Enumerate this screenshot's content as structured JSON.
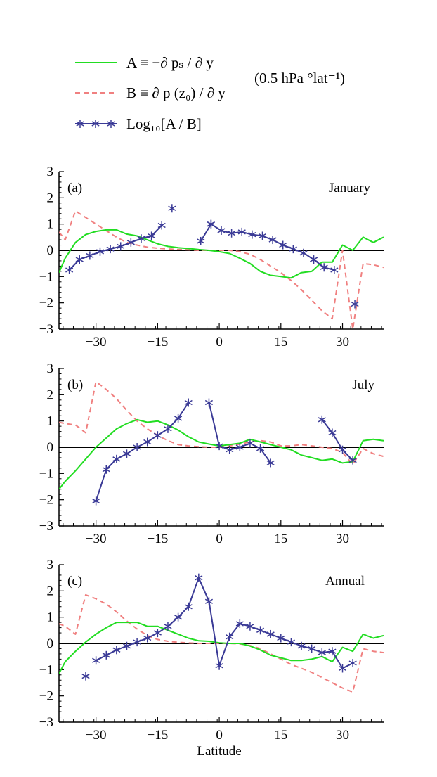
{
  "chart_data": {
    "type": "line",
    "units": "(0.5 hPa °lat⁻¹)",
    "legend": [
      {
        "key": "A",
        "text": "A ≡ −∂ pₛ / ∂ y",
        "color": "#22dd22",
        "style": "solid"
      },
      {
        "key": "B",
        "text": "B ≡ ∂ p (z₀) / ∂ y",
        "color": "#f08080",
        "style": "dashed"
      },
      {
        "key": "L",
        "text": "Log₁₀[A / B]",
        "color": "#3a3a96",
        "style": "line-with-asterisks"
      }
    ],
    "xlabel": "Latitude",
    "xlim": [
      -39,
      40
    ],
    "ylim": [
      -3,
      3
    ],
    "xticks": [
      -30,
      -15,
      0,
      15,
      30
    ],
    "xtick_labels": [
      "−30",
      "−15",
      "0",
      "15",
      "30"
    ],
    "yticks": [
      -3,
      -2,
      -1,
      0,
      1,
      2,
      3
    ],
    "ytick_labels": [
      "−3",
      "−2",
      "−1",
      "0",
      "1",
      "2",
      "3"
    ],
    "panels": [
      {
        "label": "(a)",
        "title": "January",
        "series": {
          "A": {
            "x": [
              -39,
              -37.5,
              -35,
              -32.5,
              -30,
              -27.5,
              -25,
              -22.5,
              -20,
              -17.5,
              -15,
              -12.5,
              -10,
              -7.5,
              -5,
              -2.5,
              0,
              2.5,
              5,
              7.5,
              10,
              12.5,
              15,
              17.5,
              20,
              22.5,
              25,
              27.5,
              30,
              32.5,
              35,
              37.5,
              40
            ],
            "y": [
              -0.85,
              -0.3,
              0.3,
              0.6,
              0.72,
              0.78,
              0.78,
              0.62,
              0.55,
              0.4,
              0.25,
              0.15,
              0.1,
              0.07,
              0.03,
              0.0,
              -0.05,
              -0.12,
              -0.3,
              -0.5,
              -0.8,
              -0.95,
              -1.0,
              -1.05,
              -0.85,
              -0.8,
              -0.45,
              -0.45,
              0.2,
              0.0,
              0.5,
              0.3,
              0.5
            ]
          },
          "B": {
            "x": [
              -39,
              -37.5,
              -35,
              -32.5,
              -30,
              -27.5,
              -25,
              -22.5,
              -20,
              -17.5,
              -15,
              -12.5,
              -10,
              -7.5,
              -5,
              -2.5,
              0,
              2.5,
              5,
              7.5,
              10,
              12.5,
              15,
              17.5,
              20,
              22.5,
              25,
              27.5,
              30,
              32.5,
              35,
              37.5,
              40
            ],
            "y": [
              0.7,
              0.4,
              1.5,
              1.25,
              1.0,
              0.75,
              0.5,
              0.3,
              0.2,
              0.12,
              0.08,
              0.05,
              0.03,
              0.02,
              0.0,
              0.0,
              0.0,
              0.0,
              -0.05,
              -0.15,
              -0.35,
              -0.6,
              -0.85,
              -1.15,
              -1.5,
              -1.9,
              -2.3,
              -2.6,
              0.0,
              -3.0,
              -0.5,
              -0.55,
              -0.65
            ]
          },
          "L_segments": [
            {
              "x": [
                -36.5,
                -34,
                -31.5,
                -29,
                -26.5,
                -24,
                -21.5,
                -19,
                -16.5,
                -14
              ],
              "y": [
                -0.75,
                -0.35,
                -0.2,
                -0.05,
                0.05,
                0.15,
                0.3,
                0.45,
                0.55,
                0.95
              ]
            },
            {
              "x": [
                -4.5,
                -2
              ],
              "y": [
                0.35,
                1.0
              ]
            },
            {
              "x": [
                -2,
                0.5,
                3,
                5.5,
                8,
                10.5,
                13,
                15.5,
                18,
                20.5,
                23,
                25.5,
                28
              ],
              "y": [
                1.0,
                0.75,
                0.65,
                0.7,
                0.6,
                0.55,
                0.4,
                0.2,
                0.05,
                -0.1,
                -0.35,
                -0.65,
                -0.75
              ]
            }
          ],
          "L_isolated": [
            {
              "x": -11.5,
              "y": 1.6
            },
            {
              "x": 33,
              "y": -2.05
            }
          ]
        }
      },
      {
        "label": "(b)",
        "title": "July",
        "series": {
          "A": {
            "x": [
              -39,
              -37.5,
              -35,
              -32.5,
              -30,
              -27.5,
              -25,
              -22.5,
              -20,
              -17.5,
              -15,
              -12.5,
              -10,
              -7.5,
              -5,
              -2.5,
              0,
              2.5,
              5,
              7.5,
              10,
              12.5,
              15,
              17.5,
              20,
              22.5,
              25,
              27.5,
              30,
              32.5,
              35,
              37.5,
              40
            ],
            "y": [
              -1.6,
              -1.3,
              -0.9,
              -0.45,
              0.0,
              0.35,
              0.7,
              0.9,
              1.05,
              0.95,
              1.0,
              0.85,
              0.65,
              0.4,
              0.2,
              0.12,
              0.05,
              0.1,
              0.15,
              0.3,
              0.2,
              0.1,
              0.0,
              -0.1,
              -0.3,
              -0.4,
              -0.5,
              -0.45,
              -0.6,
              -0.55,
              0.25,
              0.3,
              0.25
            ]
          },
          "B": {
            "x": [
              -39,
              -37.5,
              -35,
              -32.5,
              -30,
              -27.5,
              -25,
              -22.5,
              -20,
              -17.5,
              -15,
              -12.5,
              -10,
              -7.5,
              -5,
              -2.5,
              0,
              2.5,
              5,
              7.5,
              10,
              12.5,
              15,
              17.5,
              20,
              22.5,
              25,
              27.5,
              30,
              32.5,
              35,
              37.5,
              40
            ],
            "y": [
              0.95,
              0.9,
              0.85,
              0.55,
              2.5,
              2.2,
              1.85,
              1.4,
              1.0,
              0.7,
              0.45,
              0.25,
              0.1,
              0.05,
              0.02,
              0.0,
              0.0,
              0.05,
              0.12,
              0.2,
              0.25,
              0.2,
              0.05,
              0.05,
              0.1,
              0.05,
              0.0,
              -0.05,
              -0.2,
              -0.65,
              -0.05,
              -0.25,
              -0.35
            ]
          },
          "L_segments": [
            {
              "x": [
                -30,
                -27.5,
                -25,
                -22.5,
                -20,
                -17.5,
                -15,
                -12.5,
                -10,
                -7.5
              ],
              "y": [
                -2.05,
                -0.85,
                -0.45,
                -0.25,
                0.0,
                0.2,
                0.45,
                0.7,
                1.1,
                1.7
              ]
            },
            {
              "x": [
                -2.5,
                0,
                2.5,
                5,
                7.5,
                10,
                12.5
              ],
              "y": [
                1.7,
                0.05,
                -0.1,
                0.0,
                0.15,
                -0.05,
                -0.6
              ]
            },
            {
              "x": [
                25,
                27.5,
                30,
                32.5
              ],
              "y": [
                1.05,
                0.55,
                -0.1,
                -0.5
              ]
            }
          ],
          "L_isolated": []
        }
      },
      {
        "label": "(c)",
        "title": "Annual",
        "series": {
          "A": {
            "x": [
              -39,
              -37.5,
              -35,
              -32.5,
              -30,
              -27.5,
              -25,
              -22.5,
              -20,
              -17.5,
              -15,
              -12.5,
              -10,
              -7.5,
              -5,
              -2.5,
              0,
              2.5,
              5,
              7.5,
              10,
              12.5,
              15,
              17.5,
              20,
              22.5,
              25,
              27.5,
              30,
              32.5,
              35,
              37.5,
              40
            ],
            "y": [
              -1.15,
              -0.7,
              -0.3,
              0.05,
              0.35,
              0.6,
              0.8,
              0.8,
              0.8,
              0.65,
              0.65,
              0.5,
              0.35,
              0.2,
              0.1,
              0.08,
              0.02,
              0.0,
              0.0,
              -0.1,
              -0.25,
              -0.45,
              -0.55,
              -0.65,
              -0.65,
              -0.6,
              -0.5,
              -0.7,
              -0.15,
              -0.3,
              0.35,
              0.2,
              0.3
            ]
          },
          "B": {
            "x": [
              -39,
              -37.5,
              -35,
              -32.5,
              -30,
              -27.5,
              -25,
              -22.5,
              -20,
              -17.5,
              -15,
              -12.5,
              -10,
              -7.5,
              -5,
              -2.5,
              0,
              2.5,
              5,
              7.5,
              10,
              12.5,
              15,
              17.5,
              20,
              22.5,
              25,
              27.5,
              30,
              32.5,
              35,
              37.5,
              40
            ],
            "y": [
              0.75,
              0.65,
              0.35,
              1.85,
              1.7,
              1.5,
              1.2,
              0.85,
              0.55,
              0.3,
              0.15,
              0.08,
              0.04,
              0.02,
              0.0,
              0.0,
              0.0,
              0.0,
              -0.02,
              -0.08,
              -0.2,
              -0.4,
              -0.6,
              -0.8,
              -0.95,
              -1.1,
              -1.3,
              -1.5,
              -1.7,
              -1.85,
              -0.2,
              -0.3,
              -0.35
            ]
          },
          "L_segments": [
            {
              "x": [
                -30,
                -27.5,
                -25,
                -22.5,
                -20,
                -17.5,
                -15,
                -12.5,
                -10,
                -7.5,
                -5,
                -2.5,
                0,
                2.5,
                5,
                7.5,
                10,
                12.5,
                15,
                17.5,
                20,
                22.5,
                25,
                27.5,
                30,
                32.5
              ],
              "y": [
                -0.65,
                -0.45,
                -0.25,
                -0.1,
                0.05,
                0.2,
                0.4,
                0.65,
                1.0,
                1.4,
                2.5,
                1.6,
                -0.85,
                0.25,
                0.75,
                0.65,
                0.5,
                0.35,
                0.2,
                0.05,
                -0.1,
                -0.2,
                -0.35,
                -0.3,
                -0.95,
                -0.75
              ]
            }
          ],
          "L_isolated": [
            {
              "x": -32.5,
              "y": -1.25
            }
          ]
        }
      }
    ]
  }
}
